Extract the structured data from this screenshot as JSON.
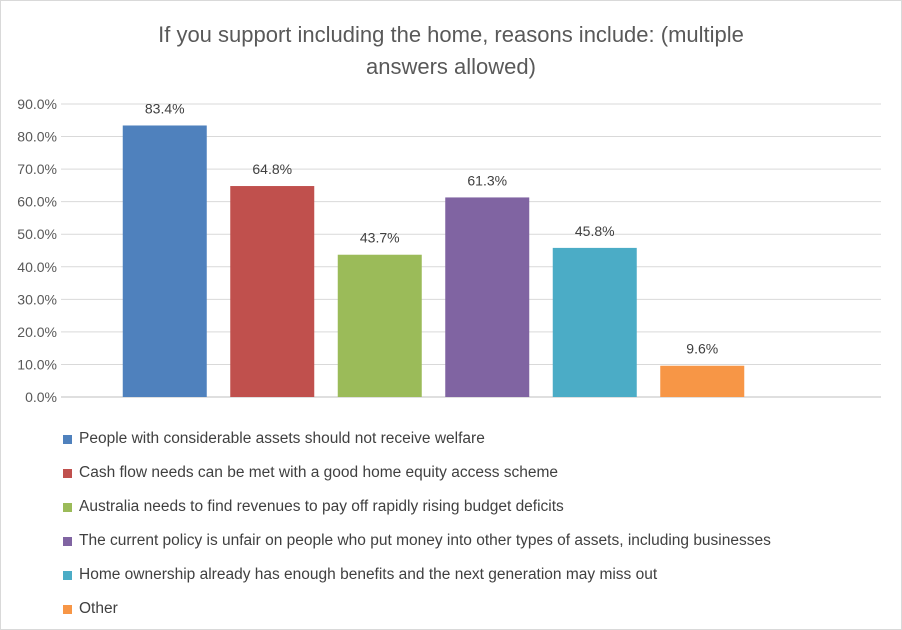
{
  "chart_data": {
    "type": "bar",
    "title": "If you support including the home, reasons include: (multiple answers allowed)",
    "title_lines": [
      "If you support including the home, reasons include: (multiple",
      "answers allowed)"
    ],
    "categories": [
      "People with considerable assets should not receive welfare",
      "Cash flow needs can be met with a good home equity access scheme",
      "Australia needs to find revenues to pay off rapidly rising budget deficits",
      "The current policy is unfair on people who put money into other types of assets, including businesses",
      "Home ownership already has enough benefits and the next generation may miss out",
      "Other"
    ],
    "values": [
      83.4,
      64.8,
      43.7,
      61.3,
      45.8,
      9.6
    ],
    "value_labels": [
      "83.4%",
      "64.8%",
      "43.7%",
      "61.3%",
      "45.8%",
      "9.6%"
    ],
    "colors": [
      "#4f81bd",
      "#c0504d",
      "#9bbb59",
      "#8064a2",
      "#4bacc6",
      "#f79646"
    ],
    "ylim": [
      0,
      90
    ],
    "yticks": [
      0,
      10,
      20,
      30,
      40,
      50,
      60,
      70,
      80,
      90
    ],
    "ytick_labels": [
      "0.0%",
      "10.0%",
      "20.0%",
      "30.0%",
      "40.0%",
      "50.0%",
      "60.0%",
      "70.0%",
      "80.0%",
      "90.0%"
    ],
    "xlabel": "",
    "ylabel": "",
    "grid": true,
    "legend_position": "bottom"
  }
}
